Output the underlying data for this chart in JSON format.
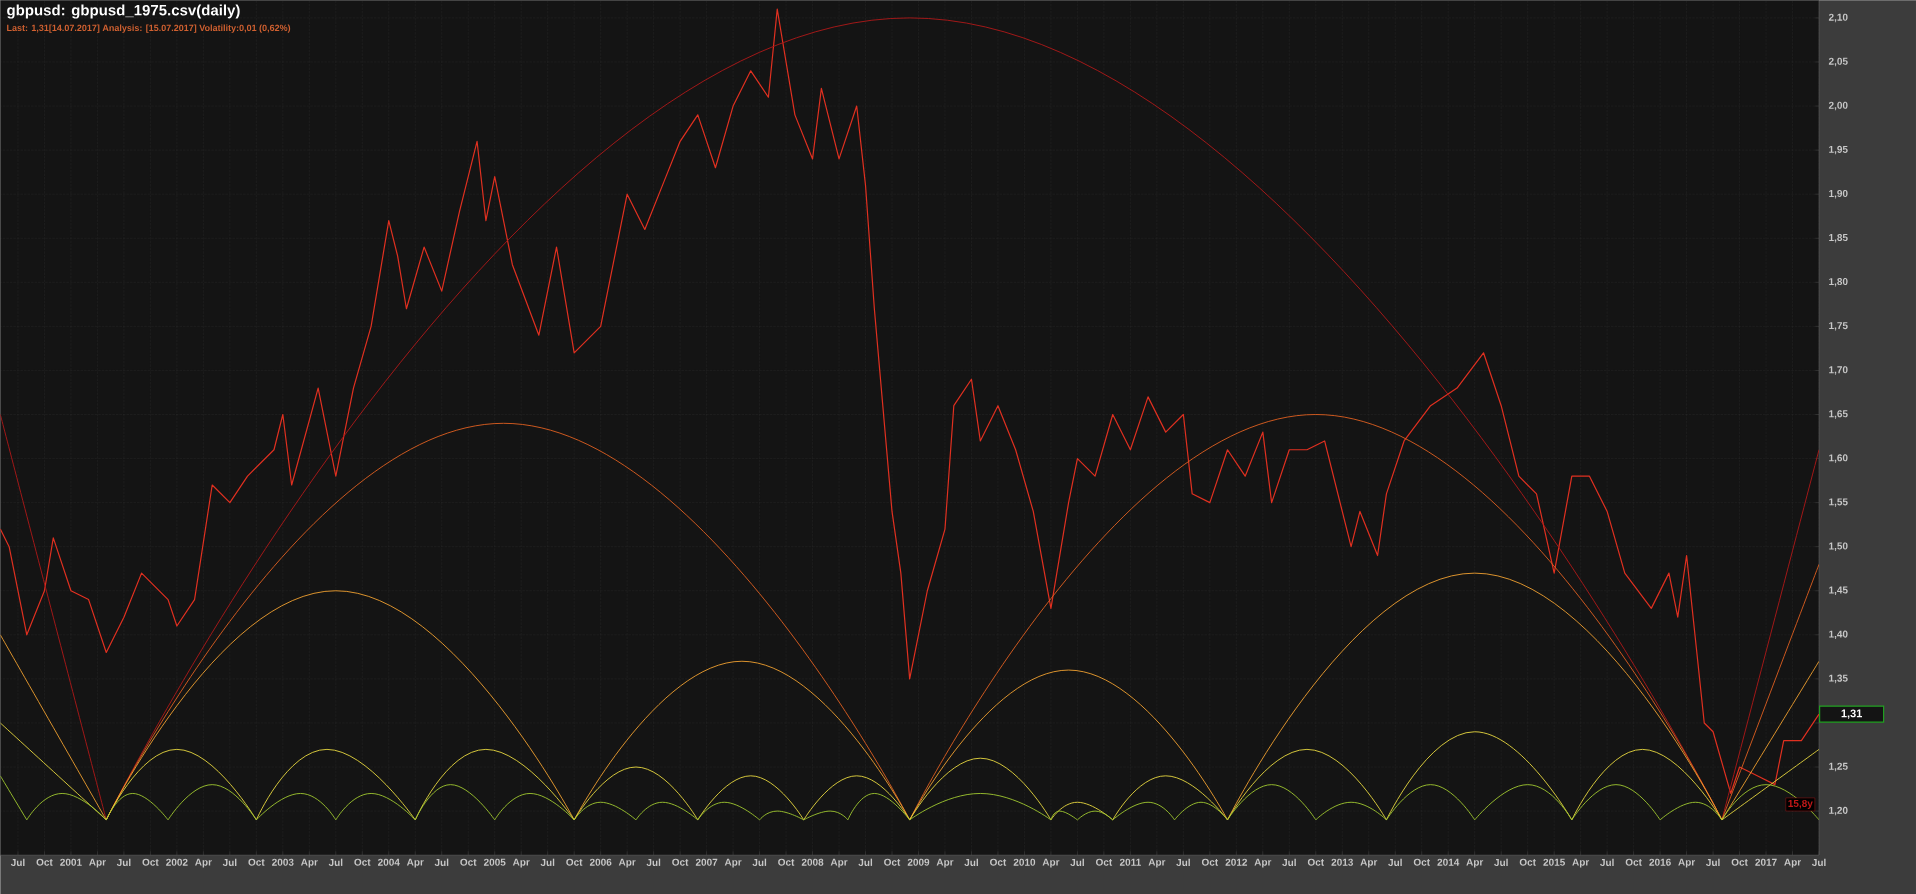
{
  "chart_data": {
    "type": "line",
    "title": "gbpusd: gbpusd_1975.csv(daily)",
    "subtitle": "Last: 1,31[14.07.2017] Analysis: [15.07.2017] Volatility:0,01 (0,62%)",
    "xlim": [
      "2000-05",
      "2017-07"
    ],
    "ylim": [
      1.15,
      2.12
    ],
    "grid": true,
    "yticks": [
      {
        "value": 1.2,
        "label": "1,20"
      },
      {
        "value": 1.25,
        "label": "1,25"
      },
      {
        "value": 1.3,
        "label": null
      },
      {
        "value": 1.35,
        "label": "1,35"
      },
      {
        "value": 1.4,
        "label": "1,40"
      },
      {
        "value": 1.45,
        "label": "1,45"
      },
      {
        "value": 1.5,
        "label": "1,50"
      },
      {
        "value": 1.55,
        "label": "1,55"
      },
      {
        "value": 1.6,
        "label": "1,60"
      },
      {
        "value": 1.65,
        "label": "1,65"
      },
      {
        "value": 1.7,
        "label": "1,70"
      },
      {
        "value": 1.75,
        "label": "1,75"
      },
      {
        "value": 1.8,
        "label": "1,80"
      },
      {
        "value": 1.85,
        "label": "1,85"
      },
      {
        "value": 1.9,
        "label": "1,90"
      },
      {
        "value": 1.95,
        "label": "1,95"
      },
      {
        "value": 2.0,
        "label": "2,00"
      },
      {
        "value": 2.05,
        "label": "2,05"
      },
      {
        "value": 2.1,
        "label": "2,10"
      }
    ],
    "xticks": [
      {
        "value": "2000-07",
        "label": "Jul"
      },
      {
        "value": "2000-10",
        "label": "Oct"
      },
      {
        "value": "2001-01",
        "label": "2001"
      },
      {
        "value": "2001-04",
        "label": "Apr"
      },
      {
        "value": "2001-07",
        "label": "Jul"
      },
      {
        "value": "2001-10",
        "label": "Oct"
      },
      {
        "value": "2002-01",
        "label": "2002"
      },
      {
        "value": "2002-04",
        "label": "Apr"
      },
      {
        "value": "2002-07",
        "label": "Jul"
      },
      {
        "value": "2002-10",
        "label": "Oct"
      },
      {
        "value": "2003-01",
        "label": "2003"
      },
      {
        "value": "2003-04",
        "label": "Apr"
      },
      {
        "value": "2003-07",
        "label": "Jul"
      },
      {
        "value": "2003-10",
        "label": "Oct"
      },
      {
        "value": "2004-01",
        "label": "2004"
      },
      {
        "value": "2004-04",
        "label": "Apr"
      },
      {
        "value": "2004-07",
        "label": "Jul"
      },
      {
        "value": "2004-10",
        "label": "Oct"
      },
      {
        "value": "2005-01",
        "label": "2005"
      },
      {
        "value": "2005-04",
        "label": "Apr"
      },
      {
        "value": "2005-07",
        "label": "Jul"
      },
      {
        "value": "2005-10",
        "label": "Oct"
      },
      {
        "value": "2006-01",
        "label": "2006"
      },
      {
        "value": "2006-04",
        "label": "Apr"
      },
      {
        "value": "2006-07",
        "label": "Jul"
      },
      {
        "value": "2006-10",
        "label": "Oct"
      },
      {
        "value": "2007-01",
        "label": "2007"
      },
      {
        "value": "2007-04",
        "label": "Apr"
      },
      {
        "value": "2007-07",
        "label": "Jul"
      },
      {
        "value": "2007-10",
        "label": "Oct"
      },
      {
        "value": "2008-01",
        "label": "2008"
      },
      {
        "value": "2008-04",
        "label": "Apr"
      },
      {
        "value": "2008-07",
        "label": "Jul"
      },
      {
        "value": "2008-10",
        "label": "Oct"
      },
      {
        "value": "2009-01",
        "label": "2009"
      },
      {
        "value": "2009-04",
        "label": "Apr"
      },
      {
        "value": "2009-07",
        "label": "Jul"
      },
      {
        "value": "2009-10",
        "label": "Oct"
      },
      {
        "value": "2010-01",
        "label": "2010"
      },
      {
        "value": "2010-04",
        "label": "Apr"
      },
      {
        "value": "2010-07",
        "label": "Jul"
      },
      {
        "value": "2010-10",
        "label": "Oct"
      },
      {
        "value": "2011-01",
        "label": "2011"
      },
      {
        "value": "2011-04",
        "label": "Apr"
      },
      {
        "value": "2011-07",
        "label": "Jul"
      },
      {
        "value": "2011-10",
        "label": "Oct"
      },
      {
        "value": "2012-01",
        "label": "2012"
      },
      {
        "value": "2012-04",
        "label": "Apr"
      },
      {
        "value": "2012-07",
        "label": "Jul"
      },
      {
        "value": "2012-10",
        "label": "Oct"
      },
      {
        "value": "2013-01",
        "label": "2013"
      },
      {
        "value": "2013-04",
        "label": "Apr"
      },
      {
        "value": "2013-07",
        "label": "Jul"
      },
      {
        "value": "2013-10",
        "label": "Oct"
      },
      {
        "value": "2014-01",
        "label": "2014"
      },
      {
        "value": "2014-04",
        "label": "Apr"
      },
      {
        "value": "2014-07",
        "label": "Jul"
      },
      {
        "value": "2014-10",
        "label": "Oct"
      },
      {
        "value": "2015-01",
        "label": "2015"
      },
      {
        "value": "2015-04",
        "label": "Apr"
      },
      {
        "value": "2015-07",
        "label": "Jul"
      },
      {
        "value": "2015-10",
        "label": "Oct"
      },
      {
        "value": "2016-01",
        "label": "2016"
      },
      {
        "value": "2016-04",
        "label": "Apr"
      },
      {
        "value": "2016-07",
        "label": "Jul"
      },
      {
        "value": "2016-10",
        "label": "Oct"
      },
      {
        "value": "2017-01",
        "label": "2017"
      },
      {
        "value": "2017-04",
        "label": "Apr"
      },
      {
        "value": "2017-07",
        "label": "Jul"
      }
    ],
    "annotations": [
      "15,8y",
      {
        "text": "1,31",
        "x": "2017-07",
        "y": 1.31
      }
    ],
    "series": [
      {
        "color": "#e03020",
        "x": [
          "2000-05",
          "2000-06",
          "2000-08",
          "2000-10",
          "2000-11",
          "2001-01",
          "2001-03",
          "2001-05",
          "2001-07",
          "2001-09",
          "2001-12",
          "2002-01",
          "2002-03",
          "2002-05",
          "2002-07",
          "2002-09",
          "2002-12",
          "2003-01",
          "2003-02",
          "2003-05",
          "2003-07",
          "2003-09",
          "2003-11",
          "2004-01",
          "2004-02",
          "2004-03",
          "2004-05",
          "2004-07",
          "2004-09",
          "2004-11",
          "2004-12",
          "2005-01",
          "2005-03",
          "2005-06",
          "2005-08",
          "2005-10",
          "2006-01",
          "2006-04",
          "2006-06",
          "2006-08",
          "2006-10",
          "2006-12",
          "2007-02",
          "2007-04",
          "2007-06",
          "2007-08",
          "2007-09",
          "2007-11",
          "2008-01",
          "2008-02",
          "2008-04",
          "2008-06",
          "2008-07",
          "2008-08",
          "2008-10",
          "2008-11",
          "2008-12",
          "2009-02",
          "2009-04",
          "2009-05",
          "2009-07",
          "2009-08",
          "2009-10",
          "2009-12",
          "2010-02",
          "2010-04",
          "2010-06",
          "2010-07",
          "2010-09",
          "2010-11",
          "2011-01",
          "2011-03",
          "2011-05",
          "2011-07",
          "2011-08",
          "2011-10",
          "2011-12",
          "2012-02",
          "2012-04",
          "2012-05",
          "2012-07",
          "2012-09",
          "2012-11",
          "2013-02",
          "2013-03",
          "2013-05",
          "2013-06",
          "2013-08",
          "2013-11",
          "2014-02",
          "2014-05",
          "2014-07",
          "2014-09",
          "2014-11",
          "2015-01",
          "2015-03",
          "2015-05",
          "2015-07",
          "2015-09",
          "2015-12",
          "2016-02",
          "2016-03",
          "2016-04",
          "2016-06",
          "2016-07",
          "2016-09",
          "2016-10",
          "2016-12",
          "2017-02",
          "2017-03",
          "2017-05",
          "2017-07"
        ],
        "values": [
          1.52,
          1.5,
          1.4,
          1.45,
          1.51,
          1.45,
          1.44,
          1.38,
          1.42,
          1.47,
          1.44,
          1.41,
          1.44,
          1.57,
          1.55,
          1.58,
          1.61,
          1.65,
          1.57,
          1.68,
          1.58,
          1.68,
          1.75,
          1.87,
          1.83,
          1.77,
          1.84,
          1.79,
          1.88,
          1.96,
          1.87,
          1.92,
          1.82,
          1.74,
          1.84,
          1.72,
          1.75,
          1.9,
          1.86,
          1.91,
          1.96,
          1.99,
          1.93,
          2.0,
          2.04,
          2.01,
          2.11,
          1.99,
          1.94,
          2.02,
          1.94,
          2.0,
          1.91,
          1.77,
          1.54,
          1.47,
          1.35,
          1.45,
          1.52,
          1.66,
          1.69,
          1.62,
          1.66,
          1.61,
          1.54,
          1.43,
          1.55,
          1.6,
          1.58,
          1.65,
          1.61,
          1.67,
          1.63,
          1.65,
          1.56,
          1.55,
          1.61,
          1.58,
          1.63,
          1.55,
          1.61,
          1.61,
          1.62,
          1.5,
          1.54,
          1.49,
          1.56,
          1.62,
          1.66,
          1.68,
          1.72,
          1.66,
          1.58,
          1.56,
          1.47,
          1.58,
          1.58,
          1.54,
          1.47,
          1.43,
          1.47,
          1.42,
          1.49,
          1.3,
          1.29,
          1.22,
          1.25,
          1.24,
          1.23,
          1.28,
          1.28,
          1.31
        ]
      },
      {
        "color": "#b01818",
        "x": [
          "2001-05",
          "2008-12",
          "2016-08"
        ],
        "values": [
          1.19,
          2.1,
          1.19
        ]
      },
      {
        "color": "#b01818",
        "x": [
          "2000-05",
          "2001-05"
        ],
        "values": [
          1.65,
          1.19
        ]
      },
      {
        "color": "#b01818",
        "x": [
          "2016-08",
          "2017-07"
        ],
        "values": [
          1.19,
          1.61
        ]
      },
      {
        "color": "#e06020",
        "x": [
          "2001-05",
          "2005-02",
          "2008-12"
        ],
        "values": [
          1.19,
          1.64,
          1.19
        ]
      },
      {
        "color": "#e06020",
        "x": [
          "2008-12",
          "2012-10",
          "2016-08"
        ],
        "values": [
          1.19,
          1.65,
          1.19
        ]
      },
      {
        "color": "#e06020",
        "x": [
          "2016-08",
          "2017-07"
        ],
        "values": [
          1.19,
          1.48
        ]
      },
      {
        "color": "#f0a030",
        "x": [
          "2000-05",
          "2001-05"
        ],
        "values": [
          1.4,
          1.19
        ]
      },
      {
        "color": "#f0a030",
        "x": [
          "2001-05",
          "2003-07",
          "2005-10"
        ],
        "values": [
          1.19,
          1.45,
          1.19
        ]
      },
      {
        "color": "#f0a030",
        "x": [
          "2005-10",
          "2007-05",
          "2008-12"
        ],
        "values": [
          1.19,
          1.37,
          1.19
        ]
      },
      {
        "color": "#f0a030",
        "x": [
          "2008-12",
          "2010-06",
          "2011-12"
        ],
        "values": [
          1.19,
          1.36,
          1.19
        ]
      },
      {
        "color": "#f0a030",
        "x": [
          "2011-12",
          "2014-04",
          "2016-08"
        ],
        "values": [
          1.19,
          1.47,
          1.19
        ]
      },
      {
        "color": "#f0a030",
        "x": [
          "2016-08",
          "2017-07"
        ],
        "values": [
          1.19,
          1.37
        ]
      },
      {
        "color": "#e8d840",
        "x": [
          "2000-05",
          "2001-05"
        ],
        "values": [
          1.3,
          1.19
        ]
      },
      {
        "color": "#e8d840",
        "x": [
          "2001-05",
          "2002-01",
          "2002-10"
        ],
        "values": [
          1.19,
          1.27,
          1.19
        ]
      },
      {
        "color": "#e8d840",
        "x": [
          "2002-10",
          "2003-06",
          "2004-04"
        ],
        "values": [
          1.19,
          1.27,
          1.19
        ]
      },
      {
        "color": "#e8d840",
        "x": [
          "2004-04",
          "2004-12",
          "2005-10"
        ],
        "values": [
          1.19,
          1.27,
          1.19
        ]
      },
      {
        "color": "#e8d840",
        "x": [
          "2005-10",
          "2006-05",
          "2006-12"
        ],
        "values": [
          1.19,
          1.25,
          1.19
        ]
      },
      {
        "color": "#e8d840",
        "x": [
          "2006-12",
          "2007-06",
          "2007-12"
        ],
        "values": [
          1.19,
          1.24,
          1.19
        ]
      },
      {
        "color": "#e8d840",
        "x": [
          "2007-12",
          "2008-06",
          "2008-12"
        ],
        "values": [
          1.19,
          1.24,
          1.19
        ]
      },
      {
        "color": "#e8d840",
        "x": [
          "2008-12",
          "2009-08",
          "2010-04"
        ],
        "values": [
          1.19,
          1.26,
          1.19
        ]
      },
      {
        "color": "#e8d840",
        "x": [
          "2010-04",
          "2010-07",
          "2010-11"
        ],
        "values": [
          1.19,
          1.21,
          1.19
        ]
      },
      {
        "color": "#e8d840",
        "x": [
          "2010-11",
          "2011-05",
          "2011-12"
        ],
        "values": [
          1.19,
          1.24,
          1.19
        ]
      },
      {
        "color": "#e8d840",
        "x": [
          "2011-12",
          "2012-09",
          "2013-06"
        ],
        "values": [
          1.19,
          1.27,
          1.19
        ]
      },
      {
        "color": "#e8d840",
        "x": [
          "2013-06",
          "2014-04",
          "2015-03"
        ],
        "values": [
          1.19,
          1.29,
          1.19
        ]
      },
      {
        "color": "#e8d840",
        "x": [
          "2015-03",
          "2015-11",
          "2016-08"
        ],
        "values": [
          1.19,
          1.27,
          1.19
        ]
      },
      {
        "color": "#e8d840",
        "x": [
          "2016-08",
          "2017-07"
        ],
        "values": [
          1.19,
          1.27
        ]
      },
      {
        "color": "#a0c830",
        "x": [
          "2000-05",
          "2000-08"
        ],
        "values": [
          1.24,
          1.19
        ]
      },
      {
        "color": "#a0c830",
        "x": [
          "2000-08",
          "2000-12",
          "2001-05"
        ],
        "values": [
          1.19,
          1.22,
          1.19
        ]
      },
      {
        "color": "#a0c830",
        "x": [
          "2001-05",
          "2001-08",
          "2001-12"
        ],
        "values": [
          1.19,
          1.22,
          1.19
        ]
      },
      {
        "color": "#a0c830",
        "x": [
          "2001-12",
          "2002-05",
          "2002-10"
        ],
        "values": [
          1.19,
          1.23,
          1.19
        ]
      },
      {
        "color": "#a0c830",
        "x": [
          "2002-10",
          "2003-03",
          "2003-07"
        ],
        "values": [
          1.19,
          1.22,
          1.19
        ]
      },
      {
        "color": "#a0c830",
        "x": [
          "2003-07",
          "2003-11",
          "2004-04"
        ],
        "values": [
          1.19,
          1.22,
          1.19
        ]
      },
      {
        "color": "#a0c830",
        "x": [
          "2004-04",
          "2004-08",
          "2005-01"
        ],
        "values": [
          1.19,
          1.23,
          1.19
        ]
      },
      {
        "color": "#a0c830",
        "x": [
          "2005-01",
          "2005-05",
          "2005-10"
        ],
        "values": [
          1.19,
          1.22,
          1.19
        ]
      },
      {
        "color": "#a0c830",
        "x": [
          "2005-10",
          "2006-01",
          "2006-05"
        ],
        "values": [
          1.19,
          1.21,
          1.19
        ]
      },
      {
        "color": "#a0c830",
        "x": [
          "2006-05",
          "2006-08",
          "2006-12"
        ],
        "values": [
          1.19,
          1.21,
          1.19
        ]
      },
      {
        "color": "#a0c830",
        "x": [
          "2006-12",
          "2007-03",
          "2007-07"
        ],
        "values": [
          1.19,
          1.21,
          1.19
        ]
      },
      {
        "color": "#a0c830",
        "x": [
          "2007-07",
          "2007-09",
          "2007-12"
        ],
        "values": [
          1.19,
          1.2,
          1.19
        ]
      },
      {
        "color": "#a0c830",
        "x": [
          "2007-12",
          "2008-03",
          "2008-05"
        ],
        "values": [
          1.19,
          1.2,
          1.19
        ]
      },
      {
        "color": "#a0c830",
        "x": [
          "2008-05",
          "2008-08",
          "2008-12"
        ],
        "values": [
          1.19,
          1.22,
          1.19
        ]
      },
      {
        "color": "#a0c830",
        "x": [
          "2008-12",
          "2009-08",
          "2010-04"
        ],
        "values": [
          1.19,
          1.22,
          1.19
        ]
      },
      {
        "color": "#a0c830",
        "x": [
          "2010-04",
          "2010-05",
          "2010-07"
        ],
        "values": [
          1.19,
          1.2,
          1.19
        ]
      },
      {
        "color": "#a0c830",
        "x": [
          "2010-07",
          "2010-09",
          "2010-11"
        ],
        "values": [
          1.19,
          1.2,
          1.19
        ]
      },
      {
        "color": "#a0c830",
        "x": [
          "2010-11",
          "2011-03",
          "2011-06"
        ],
        "values": [
          1.19,
          1.21,
          1.19
        ]
      },
      {
        "color": "#a0c830",
        "x": [
          "2011-06",
          "2011-09",
          "2011-12"
        ],
        "values": [
          1.19,
          1.21,
          1.19
        ]
      },
      {
        "color": "#a0c830",
        "x": [
          "2011-12",
          "2012-05",
          "2012-10"
        ],
        "values": [
          1.19,
          1.23,
          1.19
        ]
      },
      {
        "color": "#a0c830",
        "x": [
          "2012-10",
          "2013-02",
          "2013-06"
        ],
        "values": [
          1.19,
          1.21,
          1.19
        ]
      },
      {
        "color": "#a0c830",
        "x": [
          "2013-06",
          "2013-11",
          "2014-04"
        ],
        "values": [
          1.19,
          1.23,
          1.19
        ]
      },
      {
        "color": "#a0c830",
        "x": [
          "2014-04",
          "2014-10",
          "2015-03"
        ],
        "values": [
          1.19,
          1.23,
          1.19
        ]
      },
      {
        "color": "#a0c830",
        "x": [
          "2015-03",
          "2015-08",
          "2016-01"
        ],
        "values": [
          1.19,
          1.23,
          1.19
        ]
      },
      {
        "color": "#a0c830",
        "x": [
          "2016-01",
          "2016-05",
          "2016-08"
        ],
        "values": [
          1.19,
          1.21,
          1.19
        ]
      },
      {
        "color": "#a0c830",
        "x": [
          "2016-08",
          "2017-01",
          "2017-07"
        ],
        "values": [
          1.19,
          1.23,
          1.19
        ]
      }
    ]
  }
}
